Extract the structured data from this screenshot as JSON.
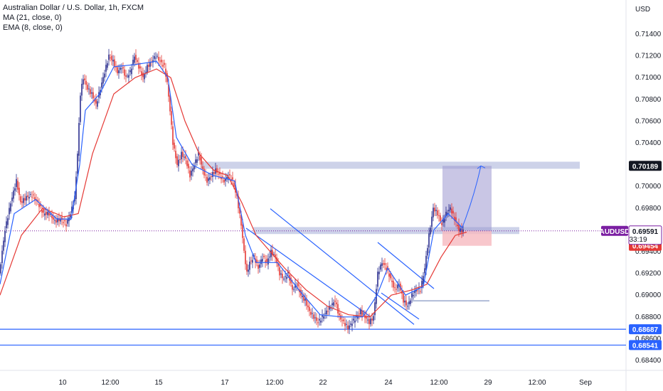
{
  "legend": {
    "symbol": "Australian Dollar / U.S. Dollar, 1h, FXCM",
    "ma": "MA (21, close, 0)",
    "ema": "EMA (8, close, 0)"
  },
  "colors": {
    "up": "#2a2e8f",
    "down": "#e53935",
    "ma": "#e53935",
    "ema": "#2962ff",
    "zone": "#b8bfe0",
    "target": "#9c97cf",
    "stop": "#f6b9bf",
    "price_line": "#7b1fa2"
  },
  "chart_data": {
    "type": "candlestick",
    "title": "Australian Dollar / U.S. Dollar, 1h, FXCM",
    "currency_label": "USD",
    "ylim": [
      0.6833,
      0.7158
    ],
    "y_ticks": [
      "0.71400",
      "0.71200",
      "0.71000",
      "0.70800",
      "0.70600",
      "0.70400",
      "0.70200",
      "0.70000",
      "0.69800",
      "0.69600",
      "0.69400",
      "0.69200",
      "0.69000",
      "0.68800",
      "0.68600",
      "0.68400"
    ],
    "x_ticks": [
      "10",
      "12:00",
      "15",
      "17",
      "12:00",
      "22",
      "24",
      "12:00",
      "29",
      "12:00",
      "Sep"
    ],
    "series": [
      {
        "name": "AUDUSD",
        "kind": "price",
        "path": [
          [
            0,
            0.692
          ],
          [
            8,
            0.696
          ],
          [
            16,
            0.6985
          ],
          [
            24,
            0.7005
          ],
          [
            30,
            0.6985
          ],
          [
            38,
            0.699
          ],
          [
            46,
            0.6992
          ],
          [
            54,
            0.6985
          ],
          [
            62,
            0.6975
          ],
          [
            70,
            0.6975
          ],
          [
            78,
            0.6968
          ],
          [
            86,
            0.697
          ],
          [
            94,
            0.6965
          ],
          [
            100,
            0.6975
          ],
          [
            106,
            0.699
          ],
          [
            110,
            0.703
          ],
          [
            114,
            0.7085
          ],
          [
            118,
            0.71
          ],
          [
            124,
            0.709
          ],
          [
            130,
            0.7085
          ],
          [
            136,
            0.7075
          ],
          [
            142,
            0.709
          ],
          [
            148,
            0.7105
          ],
          [
            154,
            0.712
          ],
          [
            160,
            0.7115
          ],
          [
            166,
            0.7105
          ],
          [
            172,
            0.711
          ],
          [
            178,
            0.71
          ],
          [
            184,
            0.7105
          ],
          [
            190,
            0.712
          ],
          [
            196,
            0.711
          ],
          [
            202,
            0.71
          ],
          [
            208,
            0.711
          ],
          [
            214,
            0.7115
          ],
          [
            220,
            0.712
          ],
          [
            226,
            0.7115
          ],
          [
            232,
            0.711
          ],
          [
            236,
            0.7095
          ],
          [
            240,
            0.707
          ],
          [
            244,
            0.704
          ],
          [
            250,
            0.702
          ],
          [
            256,
            0.703
          ],
          [
            262,
            0.7025
          ],
          [
            268,
            0.701
          ],
          [
            274,
            0.702
          ],
          [
            280,
            0.703
          ],
          [
            286,
            0.7015
          ],
          [
            292,
            0.7005
          ],
          [
            298,
            0.701
          ],
          [
            304,
            0.7015
          ],
          [
            310,
            0.701
          ],
          [
            316,
            0.7005
          ],
          [
            322,
            0.701
          ],
          [
            328,
            0.7005
          ],
          [
            334,
            0.699
          ],
          [
            340,
            0.6965
          ],
          [
            344,
            0.694
          ],
          [
            348,
            0.692
          ],
          [
            352,
            0.693
          ],
          [
            358,
            0.6935
          ],
          [
            364,
            0.6925
          ],
          [
            370,
            0.6935
          ],
          [
            376,
            0.693
          ],
          [
            382,
            0.694
          ],
          [
            388,
            0.6935
          ],
          [
            394,
            0.692
          ],
          [
            400,
            0.6915
          ],
          [
            406,
            0.692
          ],
          [
            412,
            0.6905
          ],
          [
            418,
            0.691
          ],
          [
            424,
            0.69
          ],
          [
            430,
            0.6895
          ],
          [
            436,
            0.6885
          ],
          [
            442,
            0.688
          ],
          [
            448,
            0.6875
          ],
          [
            454,
            0.688
          ],
          [
            460,
            0.6885
          ],
          [
            466,
            0.689
          ],
          [
            472,
            0.6895
          ],
          [
            478,
            0.688
          ],
          [
            484,
            0.6875
          ],
          [
            490,
            0.687
          ],
          [
            496,
            0.6875
          ],
          [
            502,
            0.688
          ],
          [
            508,
            0.6885
          ],
          [
            514,
            0.688
          ],
          [
            520,
            0.6875
          ],
          [
            526,
            0.688
          ],
          [
            532,
            0.692
          ],
          [
            538,
            0.693
          ],
          [
            544,
            0.6925
          ],
          [
            550,
            0.6915
          ],
          [
            556,
            0.6905
          ],
          [
            562,
            0.691
          ],
          [
            568,
            0.6895
          ],
          [
            574,
            0.689
          ],
          [
            580,
            0.69
          ],
          [
            586,
            0.6905
          ],
          [
            592,
            0.6905
          ],
          [
            598,
            0.6925
          ],
          [
            604,
            0.6955
          ],
          [
            610,
            0.698
          ],
          [
            616,
            0.6975
          ],
          [
            622,
            0.6965
          ],
          [
            628,
            0.6975
          ],
          [
            634,
            0.698
          ],
          [
            640,
            0.697
          ],
          [
            646,
            0.696
          ],
          [
            652,
            0.6959
          ]
        ]
      },
      {
        "name": "MA (21, close, 0)",
        "kind": "ma",
        "path": [
          [
            0,
            0.69
          ],
          [
            30,
            0.6955
          ],
          [
            60,
            0.698
          ],
          [
            90,
            0.6972
          ],
          [
            110,
            0.6975
          ],
          [
            130,
            0.703
          ],
          [
            160,
            0.7085
          ],
          [
            190,
            0.71
          ],
          [
            220,
            0.7108
          ],
          [
            240,
            0.71
          ],
          [
            260,
            0.706
          ],
          [
            280,
            0.703
          ],
          [
            300,
            0.7015
          ],
          [
            320,
            0.701
          ],
          [
            340,
            0.6985
          ],
          [
            360,
            0.6955
          ],
          [
            380,
            0.694
          ],
          [
            400,
            0.6925
          ],
          [
            430,
            0.6905
          ],
          [
            460,
            0.689
          ],
          [
            490,
            0.6882
          ],
          [
            520,
            0.688
          ],
          [
            550,
            0.69
          ],
          [
            580,
            0.6905
          ],
          [
            600,
            0.691
          ],
          [
            620,
            0.6935
          ],
          [
            640,
            0.6955
          ],
          [
            656,
            0.6958
          ]
        ]
      },
      {
        "name": "EMA (8, close, 0)",
        "kind": "ema",
        "path": [
          [
            0,
            0.691
          ],
          [
            20,
            0.6975
          ],
          [
            50,
            0.6988
          ],
          [
            80,
            0.697
          ],
          [
            100,
            0.697
          ],
          [
            112,
            0.702
          ],
          [
            120,
            0.707
          ],
          [
            140,
            0.7085
          ],
          [
            160,
            0.711
          ],
          [
            190,
            0.7112
          ],
          [
            220,
            0.7115
          ],
          [
            236,
            0.71
          ],
          [
            248,
            0.7045
          ],
          [
            270,
            0.702
          ],
          [
            300,
            0.701
          ],
          [
            330,
            0.7005
          ],
          [
            345,
            0.6955
          ],
          [
            360,
            0.693
          ],
          [
            390,
            0.693
          ],
          [
            420,
            0.6905
          ],
          [
            450,
            0.6882
          ],
          [
            480,
            0.688
          ],
          [
            510,
            0.688
          ],
          [
            530,
            0.69
          ],
          [
            545,
            0.6925
          ],
          [
            570,
            0.69
          ],
          [
            595,
            0.6908
          ],
          [
            610,
            0.696
          ],
          [
            630,
            0.6975
          ],
          [
            650,
            0.6962
          ]
        ]
      }
    ],
    "last_price": {
      "label": "AUDUSD",
      "value": "0.69591",
      "countdown": "33:19",
      "line_y": 0.69591
    },
    "price_tags": [
      {
        "value": "0.69592",
        "kind": "plain"
      },
      {
        "value": "0.69454",
        "kind": "stop"
      },
      {
        "value": "0.70189",
        "kind": "target"
      },
      {
        "value": "0.68687",
        "kind": "level"
      },
      {
        "value": "0.68541",
        "kind": "level"
      }
    ],
    "horizontal_levels": [
      0.68687,
      0.68541
    ],
    "zones": [
      {
        "name": "resistance-zone",
        "x_from": 282,
        "x_to": 815,
        "y_top": 0.70227,
        "y_bottom": 0.70162
      },
      {
        "name": "entry-zone",
        "x_from": 356,
        "x_to": 730,
        "y_top": 0.69626,
        "y_bottom": 0.69562
      }
    ],
    "position": {
      "entry": 0.69592,
      "target": 0.70189,
      "stop": 0.69454,
      "x_from": 622,
      "x_to": 691
    },
    "channels": [
      {
        "name": "descending-channel-1",
        "lines": [
          [
            [
              380,
              0.69795
            ],
            [
              582,
              0.68731
            ]
          ],
          [
            [
              346,
              0.69616
            ],
            [
              520,
              0.68806
            ]
          ]
        ]
      },
      {
        "name": "descending-channel-2",
        "lines": [
          [
            [
              531,
              0.69485
            ],
            [
              610,
              0.6906
            ]
          ],
          [
            [
              536,
              0.6902
            ],
            [
              589,
              0.6878
            ]
          ]
        ]
      }
    ],
    "support_segment": {
      "x_from": 580,
      "x_to": 688,
      "y": 0.68948
    },
    "arrow": {
      "from": [
        648,
        0.69592
      ],
      "to": [
        676,
        0.70189
      ]
    },
    "grid": false
  }
}
